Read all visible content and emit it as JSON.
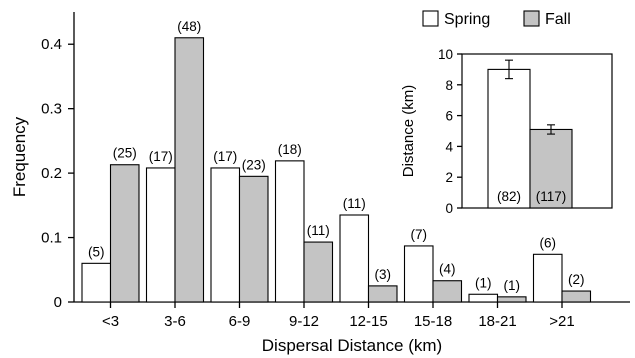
{
  "colors": {
    "spring": "#ffffff",
    "fall": "#c4c4c4",
    "stroke": "#000000"
  },
  "legend": {
    "spring_label": "Spring",
    "fall_label": "Fall"
  },
  "chart_data": [
    {
      "type": "bar",
      "xlabel": "Dispersal Distance (km)",
      "ylabel": "Frequency",
      "ylim": [
        0,
        0.45
      ],
      "yticks": [
        "0",
        "0.1",
        "0.2",
        "0.3",
        "0.4"
      ],
      "ytick_values": [
        0,
        0.1,
        0.2,
        0.3,
        0.4
      ],
      "categories": [
        "<3",
        "3-6",
        "6-9",
        "9-12",
        "12-15",
        "15-18",
        "18-21",
        ">21"
      ],
      "legend_position": "top-right",
      "series": [
        {
          "name": "Spring",
          "values": [
            0.06,
            0.208,
            0.208,
            0.219,
            0.135,
            0.087,
            0.012,
            0.074
          ],
          "labels": [
            "(5)",
            "(17)",
            "(17)",
            "(18)",
            "(11)",
            "(7)",
            "(1)",
            "(6)"
          ]
        },
        {
          "name": "Fall",
          "values": [
            0.213,
            0.41,
            0.195,
            0.093,
            0.025,
            0.033,
            0.008,
            0.017
          ],
          "labels": [
            "(25)",
            "(48)",
            "(23)",
            "(11)",
            "(3)",
            "(4)",
            "(1)",
            "(2)"
          ]
        }
      ]
    },
    {
      "type": "bar",
      "ylabel": "Distance (km)",
      "ylim": [
        0,
        10
      ],
      "yticks": [
        "0",
        "2",
        "4",
        "6",
        "8",
        "10"
      ],
      "ytick_values": [
        0,
        2,
        4,
        6,
        8,
        10
      ],
      "series": [
        {
          "name": "Spring",
          "value": 9.0,
          "error": 0.6,
          "label": "(82)"
        },
        {
          "name": "Fall",
          "value": 5.1,
          "error": 0.3,
          "label": "(117)"
        }
      ]
    }
  ]
}
